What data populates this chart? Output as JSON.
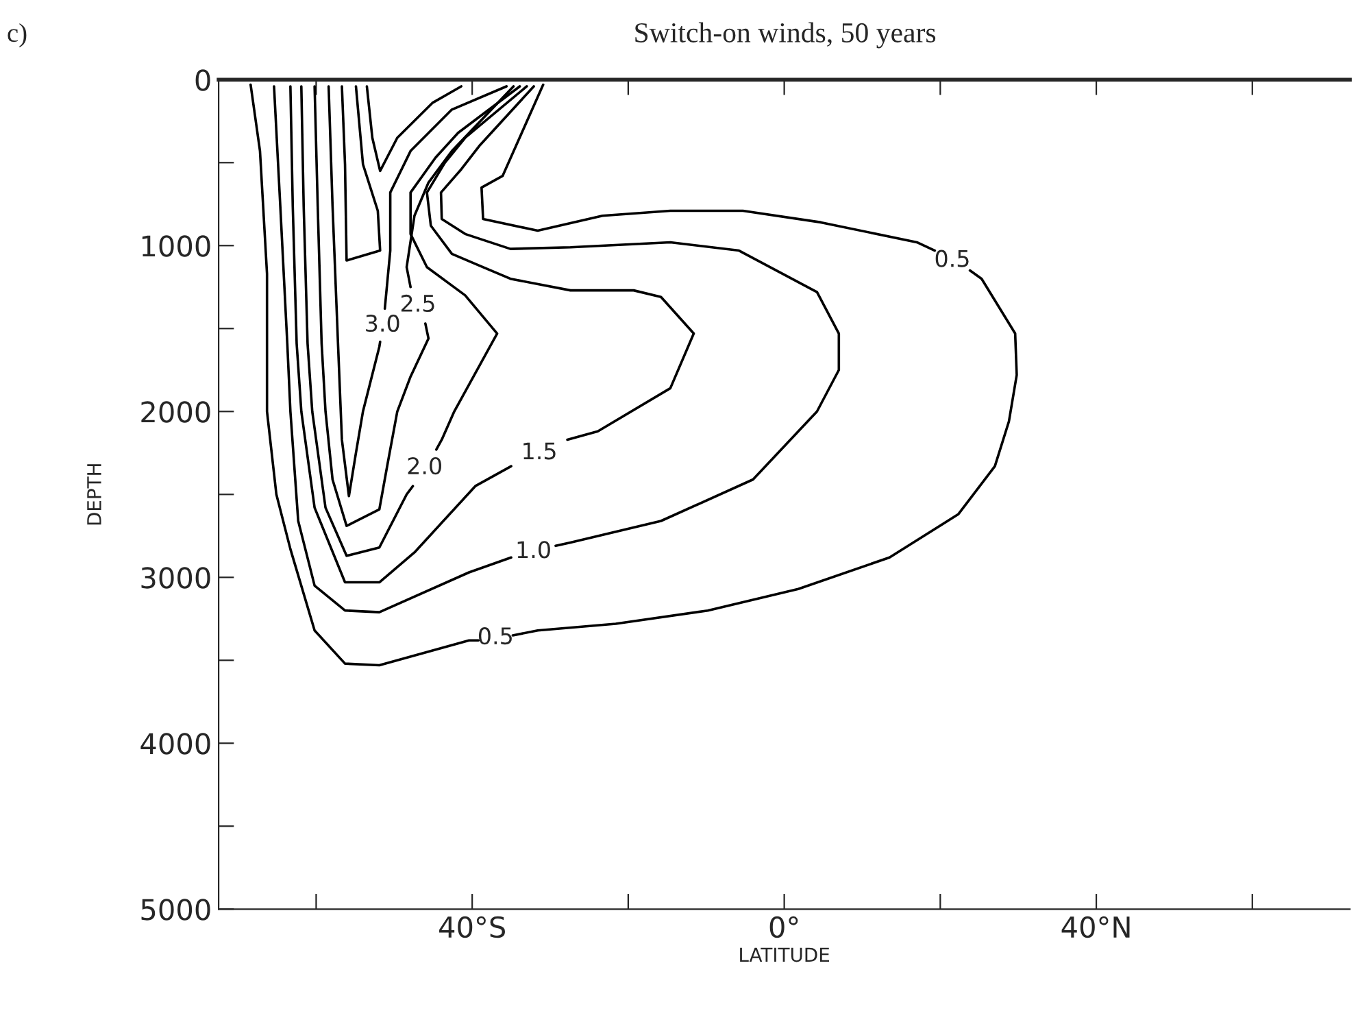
{
  "chart_data": {
    "type": "line",
    "title": "Switch-on winds, 50 years",
    "xlabel": "LATITUDE",
    "ylabel": "DEPTH",
    "annotations": [
      "c)"
    ],
    "xlim": [
      -72.5,
      72.5
    ],
    "ylim": [
      5000,
      0
    ],
    "xticks": [
      {
        "value": -60,
        "label": null
      },
      {
        "value": -40,
        "label": "40°S"
      },
      {
        "value": -20,
        "label": null
      },
      {
        "value": 0,
        "label": "0°"
      },
      {
        "value": 20,
        "label": null
      },
      {
        "value": 40,
        "label": "40°N"
      },
      {
        "value": 60,
        "label": null
      }
    ],
    "yticks": [
      0,
      {
        "value": 500,
        "label": null
      },
      1000,
      {
        "value": 1500,
        "label": null
      },
      2000,
      {
        "value": 2500,
        "label": null
      },
      3000,
      {
        "value": 3500,
        "label": null
      },
      4000,
      {
        "value": 4500,
        "label": null
      },
      5000
    ],
    "grid": false,
    "legend": false,
    "marker": "none",
    "line_style": "solid",
    "series": [
      {
        "name": "0.5",
        "color": "#000000",
        "x": [
          -68.4,
          -67.2,
          -66.3,
          -66.3,
          -65.1,
          -63.3,
          -60.2,
          -56.3,
          -51.9,
          -40.4,
          -39.2,
          -37.0,
          -34.8,
          -31.6,
          -21.6,
          -9.8,
          1.8,
          13.5,
          22.3,
          27.0,
          28.8,
          29.8,
          29.6,
          25.3,
          23.8,
          21.6,
          19.3,
          17.0,
          4.7,
          -5.3,
          -14.6,
          -23.3,
          -31.6,
          -38.6,
          -38.8,
          -36.1,
          -30.9
        ],
        "values": [
          30,
          430,
          1170,
          2000,
          2500,
          2830,
          3320,
          3520,
          3530,
          3380,
          3380,
          null,
          3350,
          3320,
          3280,
          3200,
          3070,
          2880,
          2620,
          2330,
          2060,
          1780,
          1530,
          1200,
          1150,
          null,
          1030,
          980,
          860,
          790,
          790,
          820,
          910,
          840,
          650,
          580,
          30
        ]
      },
      {
        "name": "1.0",
        "color": "#000000",
        "x": [
          -65.4,
          -64.6,
          -63.7,
          -63.3,
          -62.3,
          -60.2,
          -56.3,
          -51.9,
          -40.4,
          -35.0,
          -32.1,
          -29.3,
          -27.4,
          -15.8,
          -4.0,
          4.2,
          7.0,
          7.0,
          4.2,
          -5.8,
          -14.6,
          -27.4,
          -35.1,
          -40.9,
          -43.9,
          -44.0,
          -41.4,
          -39.1,
          -32.1
        ],
        "values": [
          40,
          760,
          1590,
          2000,
          2660,
          3050,
          3200,
          3210,
          2970,
          2880,
          null,
          2810,
          2790,
          2660,
          2410,
          2000,
          1750,
          1530,
          1280,
          1030,
          980,
          1010,
          1020,
          930,
          840,
          680,
          540,
          400,
          40
        ]
      },
      {
        "name": "1.5",
        "color": "#000000",
        "x": [
          -63.3,
          -63.0,
          -62.5,
          -61.9,
          -60.2,
          -56.3,
          -51.9,
          -47.4,
          -39.6,
          -35.0,
          -31.2,
          -27.8,
          -23.9,
          -14.6,
          -11.6,
          -15.8,
          -19.3,
          -27.4,
          -35.1,
          -39.1,
          -42.6,
          -45.3,
          -45.8,
          -43.5,
          -40.9,
          -33.0
        ],
        "values": [
          40,
          760,
          1590,
          2000,
          2580,
          3030,
          3030,
          2850,
          2450,
          2330,
          null,
          2170,
          2120,
          1860,
          1530,
          1310,
          1270,
          1270,
          1200,
          1120,
          1050,
          880,
          680,
          500,
          350,
          40
        ]
      },
      {
        "name": "2.0",
        "color": "#000000",
        "x": [
          -61.9,
          -61.6,
          -61.1,
          -60.5,
          -58.8,
          -56.1,
          -51.9,
          -48.4,
          -47.6,
          -46.1,
          -44.6,
          -43.9,
          -42.3,
          -36.8,
          -40.9,
          -45.8,
          -47.9,
          -47.9,
          -44.7,
          -41.8,
          -33.9
        ],
        "values": [
          40,
          760,
          1590,
          2000,
          2580,
          2870,
          2820,
          2500,
          2450,
          null,
          2230,
          2170,
          2000,
          1530,
          1300,
          1130,
          930,
          680,
          470,
          320,
          40
        ]
      },
      {
        "name": "2.5",
        "color": "#000000",
        "x": [
          -60.2,
          -59.8,
          -59.3,
          -58.8,
          -57.9,
          -56.1,
          -51.9,
          -50.9,
          -49.6,
          -47.9,
          -45.6,
          -46.0,
          -47.4,
          -47.9,
          -48.4,
          -47.4,
          -45.6,
          -42.6,
          -34.7
        ],
        "values": [
          40,
          760,
          1590,
          2000,
          2410,
          2690,
          2590,
          2330,
          2000,
          1790,
          1560,
          1470,
          null,
          1250,
          1130,
          820,
          620,
          430,
          40
        ]
      },
      {
        "name": "3.0",
        "color": "#000000",
        "x": [
          -58.4,
          -57.9,
          -57.2,
          -56.7,
          -55.8,
          -54.9,
          -54.0,
          -51.9,
          -51.8,
          -51.6,
          -51.2,
          -50.9,
          -50.5,
          -50.5,
          -47.9,
          -42.6,
          -35.6
        ],
        "values": [
          40,
          760,
          1590,
          2170,
          2510,
          2250,
          2000,
          1610,
          1580,
          null,
          1380,
          1230,
          1030,
          680,
          430,
          180,
          40
        ]
      },
      {
        "color": "#000000",
        "x": [
          -56.7,
          -56.3,
          -56.1,
          -51.8,
          -52.1,
          -54.0,
          -54.9
        ],
        "values": [
          40,
          510,
          1090,
          1030,
          790,
          510,
          40
        ]
      },
      {
        "color": "#000000",
        "x": [
          -53.5,
          -52.8,
          -51.8,
          -49.6,
          -45.1,
          -41.4
        ],
        "values": [
          40,
          350,
          550,
          350,
          140,
          40
        ]
      }
    ]
  }
}
